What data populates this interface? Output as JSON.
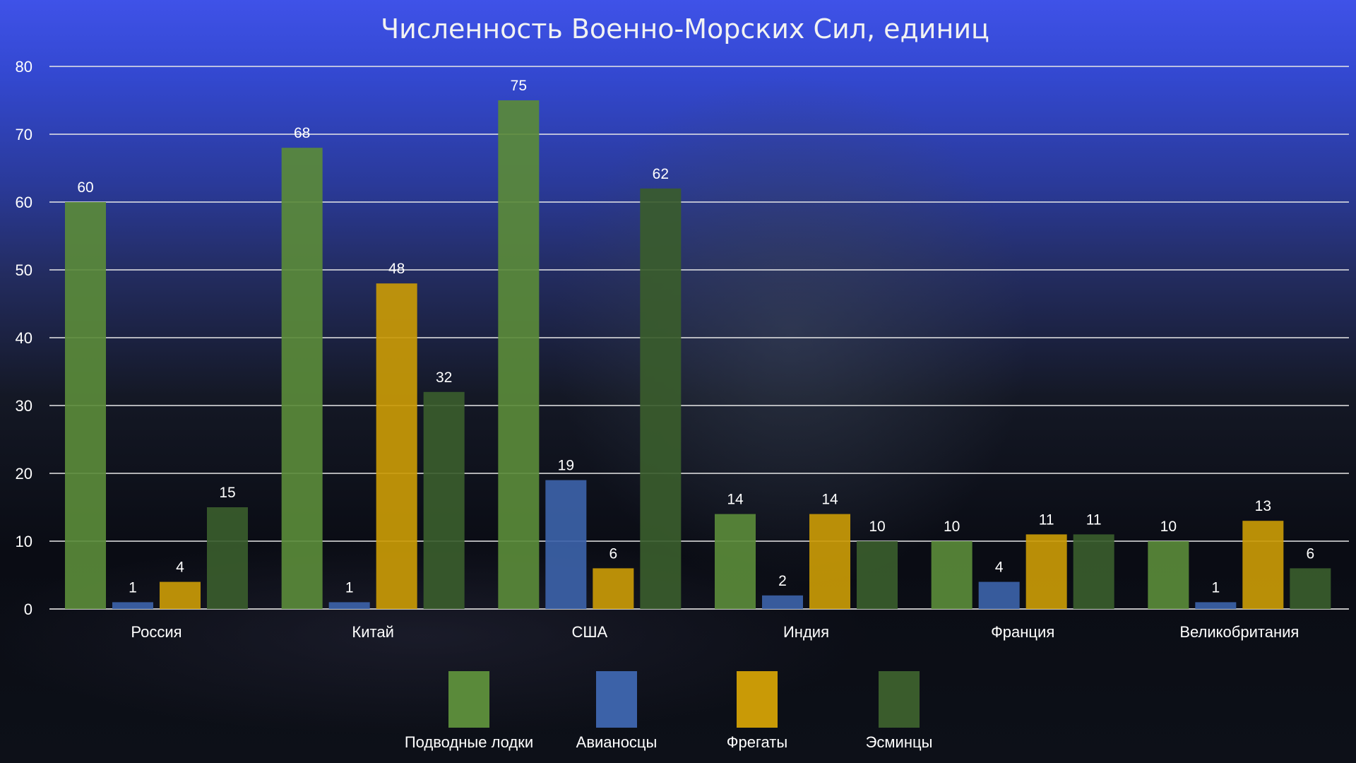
{
  "chart_data": {
    "type": "bar",
    "title": "Численность Военно-Морских Сил, единиц",
    "xlabel": "",
    "ylabel": "",
    "ylim": [
      0,
      80
    ],
    "yticks": [
      "0",
      "10",
      "20",
      "30",
      "40",
      "50",
      "60",
      "70",
      "80"
    ],
    "grid": true,
    "legend_position": "bottom",
    "categories": [
      "Россия",
      "Китай",
      "США",
      "Индия",
      "Франция",
      "Великобритания"
    ],
    "series": [
      {
        "name": "Подводные лодки",
        "color": "#5a8a3a",
        "values": [
          60,
          68,
          75,
          14,
          10,
          10
        ]
      },
      {
        "name": "Авианосцы",
        "color": "#3c62a8",
        "values": [
          1,
          1,
          19,
          2,
          4,
          1
        ]
      },
      {
        "name": "Фрегаты",
        "color": "#c99a06",
        "values": [
          4,
          48,
          6,
          14,
          11,
          13
        ]
      },
      {
        "name": "Эсминцы",
        "color": "#3a5c2c",
        "values": [
          15,
          32,
          62,
          10,
          11,
          6
        ]
      }
    ]
  }
}
